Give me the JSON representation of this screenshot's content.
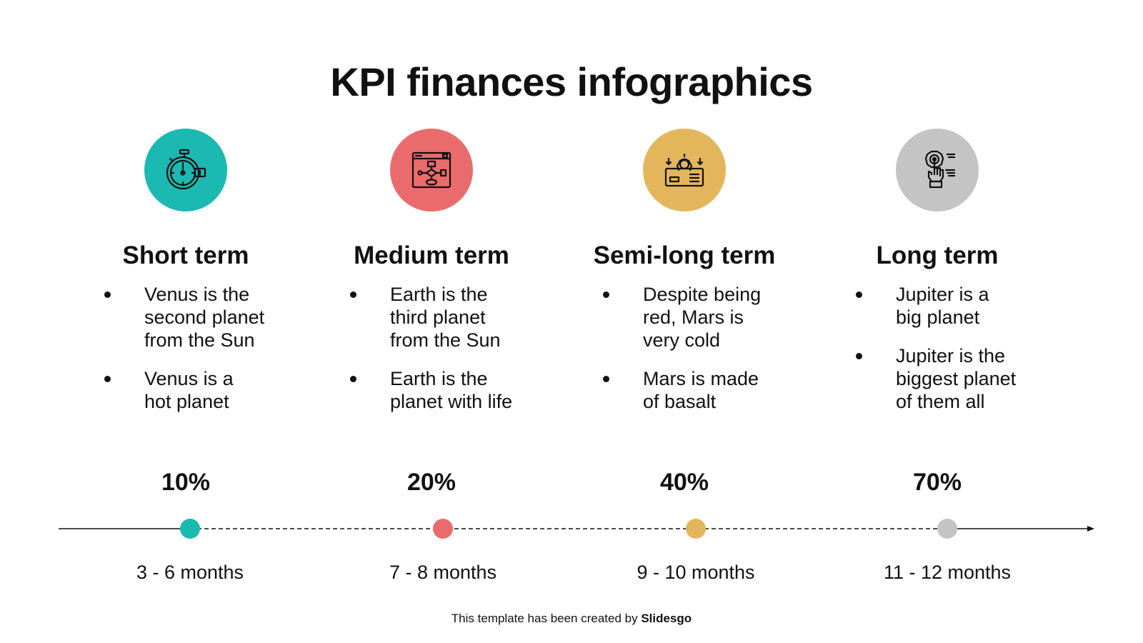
{
  "title": "KPI finances infographics",
  "columns": [
    {
      "title": "Short term",
      "icon": "stopwatch-icon",
      "color": "#1BB9B1",
      "bullets": [
        "Venus is the\nsecond planet\nfrom the Sun",
        "Venus is a\nhot planet"
      ],
      "percent": "10%",
      "months": "3 - 6 months"
    },
    {
      "title": "Medium term",
      "icon": "flowchart-icon",
      "color": "#EA6B6B",
      "bullets": [
        "Earth is the\nthird planet\nfrom the Sun",
        "Earth is the\nplanet with life"
      ],
      "percent": "20%",
      "months": "7 - 8 months"
    },
    {
      "title": "Semi-long term",
      "icon": "money-gear-icon",
      "color": "#E4B65C",
      "bullets": [
        "Despite being\nred, Mars is\nvery cold",
        "Mars is made\nof basalt"
      ],
      "percent": "40%",
      "months": "9 - 10 months"
    },
    {
      "title": "Long term",
      "icon": "hand-gear-icon",
      "color": "#C4C4C4",
      "bullets": [
        "Jupiter is a\nbig planet",
        "Jupiter is the\nbiggest planet\nof them all"
      ],
      "percent": "70%",
      "months": "11 - 12 months"
    }
  ],
  "footer": {
    "prefix": "This template has been created by ",
    "brand": "Slidesgo"
  }
}
